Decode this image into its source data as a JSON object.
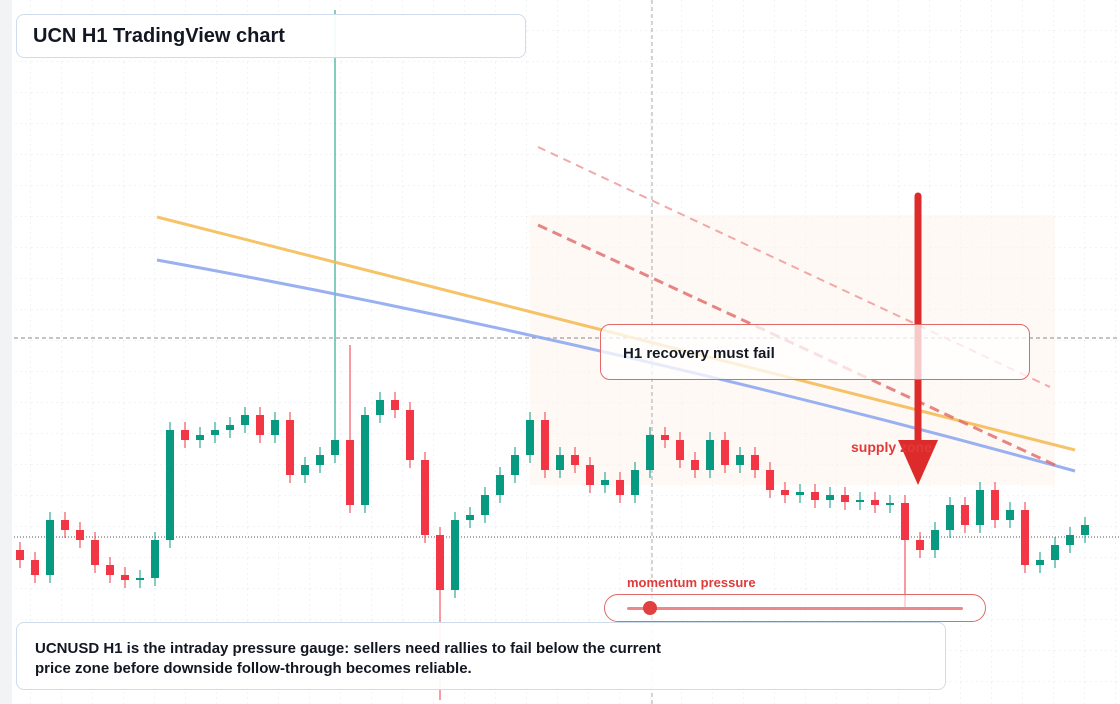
{
  "chart_data": {
    "type": "candlestick",
    "title": "UCN H1 TradingView chart",
    "callout": "H1 recovery must fail",
    "zone_label": "supply zone",
    "gauge_label": "momentum pressure",
    "description": "UCNUSD H1 is the intraday pressure gauge: sellers need rallies to fail below the current price zone before downside follow-through becomes reliable.",
    "up_color": "#089981",
    "down_color": "#f23645",
    "ylim": [
      0,
      704
    ],
    "open": [
      154,
      144,
      129,
      184,
      174,
      164,
      139,
      129,
      124,
      126,
      164,
      274,
      264,
      269,
      274,
      279,
      289,
      269,
      284,
      229,
      239,
      249,
      264,
      199,
      289,
      304,
      294,
      244,
      169,
      114,
      184,
      189,
      209,
      229,
      249,
      284,
      234,
      249,
      239,
      219,
      224,
      209,
      234,
      269,
      264,
      244,
      234,
      264,
      239,
      249,
      234,
      214,
      209,
      212,
      204,
      209,
      202,
      204,
      199,
      201,
      164,
      154,
      174,
      199,
      179,
      214,
      184,
      194,
      139,
      144,
      159,
      169
    ],
    "high": [
      162,
      152,
      192,
      192,
      182,
      172,
      147,
      137,
      134,
      172,
      282,
      282,
      277,
      282,
      287,
      297,
      297,
      292,
      292,
      247,
      257,
      694,
      359,
      297,
      312,
      312,
      302,
      252,
      177,
      192,
      197,
      217,
      237,
      257,
      292,
      292,
      257,
      257,
      247,
      232,
      232,
      242,
      277,
      277,
      272,
      252,
      272,
      272,
      257,
      257,
      242,
      222,
      220,
      220,
      217,
      217,
      212,
      212,
      209,
      209,
      172,
      182,
      207,
      207,
      222,
      222,
      202,
      202,
      152,
      167,
      177,
      187
    ],
    "low": [
      136,
      121,
      121,
      166,
      156,
      131,
      121,
      116,
      116,
      118,
      156,
      256,
      256,
      261,
      266,
      271,
      261,
      261,
      221,
      221,
      231,
      241,
      191,
      191,
      281,
      286,
      236,
      161,
      4,
      106,
      176,
      181,
      201,
      221,
      241,
      226,
      226,
      231,
      211,
      211,
      201,
      201,
      226,
      256,
      236,
      226,
      226,
      231,
      231,
      226,
      206,
      201,
      201,
      196,
      196,
      194,
      194,
      191,
      191,
      94,
      146,
      146,
      166,
      171,
      171,
      176,
      176,
      131,
      131,
      136,
      151,
      161
    ],
    "close": [
      144,
      129,
      184,
      174,
      164,
      139,
      129,
      124,
      126,
      164,
      274,
      264,
      269,
      274,
      279,
      289,
      269,
      284,
      229,
      239,
      249,
      264,
      199,
      289,
      304,
      294,
      244,
      169,
      114,
      184,
      189,
      209,
      229,
      249,
      284,
      234,
      249,
      239,
      219,
      224,
      209,
      234,
      269,
      264,
      244,
      234,
      264,
      239,
      249,
      234,
      214,
      209,
      212,
      204,
      209,
      202,
      204,
      199,
      201,
      164,
      154,
      174,
      199,
      179,
      214,
      184,
      194,
      139,
      144,
      159,
      169,
      179
    ]
  }
}
